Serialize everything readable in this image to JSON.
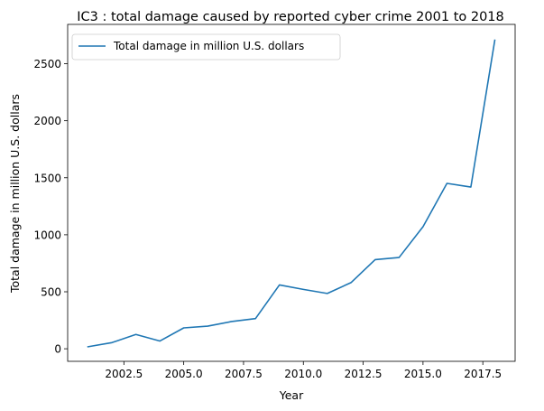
{
  "chart_data": {
    "type": "line",
    "title": "IC3 : total damage caused by reported cyber crime 2001 to 2018",
    "xlabel": "Year",
    "ylabel": "Total damage in million U.S. dollars",
    "xlim": [
      2000.15,
      2018.85
    ],
    "ylim": [
      -110,
      2845
    ],
    "xticks": [
      2002.5,
      2005.0,
      2007.5,
      2010.0,
      2012.5,
      2015.0,
      2017.5
    ],
    "xtick_labels": [
      "2002.5",
      "2005.0",
      "2007.5",
      "2010.0",
      "2012.5",
      "2015.0",
      "2017.5"
    ],
    "yticks": [
      0,
      500,
      1000,
      1500,
      2000,
      2500
    ],
    "ytick_labels": [
      "0",
      "500",
      "1000",
      "1500",
      "2000",
      "2500"
    ],
    "grid": false,
    "legend_position": "top-left",
    "series": [
      {
        "name": "Total damage in million U.S. dollars",
        "color": "#1f77b4",
        "x": [
          2001,
          2002,
          2003,
          2004,
          2005,
          2006,
          2007,
          2008,
          2009,
          2010,
          2011,
          2012,
          2013,
          2014,
          2015,
          2016,
          2017,
          2018
        ],
        "y": [
          17.8,
          54,
          125.6,
          68.1,
          183.1,
          198.4,
          239.1,
          264.6,
          559.7,
          521,
          485.3,
          581.4,
          781.8,
          800.5,
          1070.7,
          1450.7,
          1418.7,
          2706.4
        ]
      }
    ]
  }
}
